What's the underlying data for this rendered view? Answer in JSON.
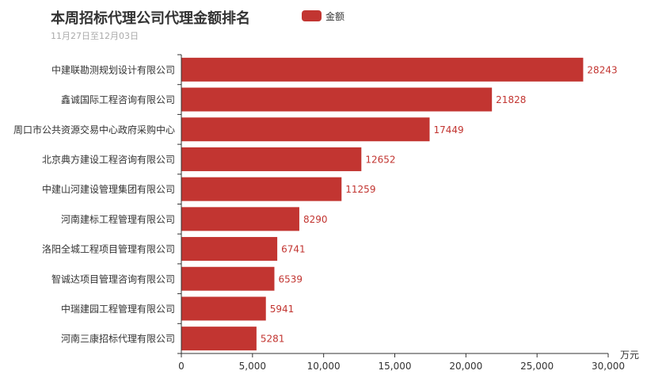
{
  "chart_data": {
    "type": "bar",
    "orientation": "horizontal",
    "title": "本周招标代理公司代理金额排名",
    "subtitle": "11月27日至12月03日",
    "categories": [
      "中建联勘测规划设计有限公司",
      "鑫诚国际工程咨询有限公司",
      "周口市公共资源交易中心政府采购中心",
      "北京典方建设工程咨询有限公司",
      "中建山河建设管理集团有限公司",
      "河南建标工程管理有限公司",
      "洛阳全城工程项目管理有限公司",
      "智诚达项目管理咨询有限公司",
      "中瑞建园工程管理有限公司",
      "河南三康招标代理有限公司"
    ],
    "series": [
      {
        "name": "金额",
        "color": "#c23531",
        "values": [
          28243,
          21828,
          17449,
          12652,
          11259,
          8290,
          6741,
          6539,
          5941,
          5281
        ]
      }
    ],
    "xunit": "万元",
    "xlim": [
      0,
      30000
    ],
    "xticks": [
      0,
      5000,
      10000,
      15000,
      20000,
      25000,
      30000
    ],
    "xtick_labels": [
      "0",
      "5,000",
      "10,000",
      "15,000",
      "20,000",
      "25,000",
      "30,000"
    ],
    "legend_position": "top",
    "grid": false
  }
}
